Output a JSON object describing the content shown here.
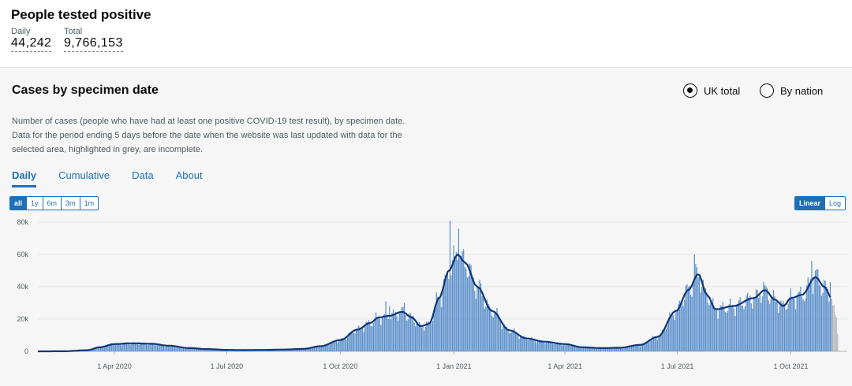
{
  "header": {
    "title": "People tested positive",
    "daily_label": "Daily",
    "daily_value": "44,242",
    "total_label": "Total",
    "total_value": "9,766,153"
  },
  "card": {
    "title": "Cases by specimen date",
    "radio_uk": "UK total",
    "radio_nation": "By nation",
    "radio_selected": "UK total",
    "description": "Number of cases (people who have had at least one positive COVID-19 test result), by specimen date. Data for the period ending 5 days before the date when the website was last updated with data for the selected area, highlighted in grey, are incomplete.",
    "tabs": [
      "Daily",
      "Cumulative",
      "Data",
      "About"
    ],
    "active_tab": "Daily",
    "range_buttons": [
      "all",
      "1y",
      "6m",
      "3m",
      "1m"
    ],
    "active_range": "all",
    "scale_buttons": [
      "Linear",
      "Log"
    ],
    "active_scale": "Linear"
  },
  "colors": {
    "bar": "#5a8fcb",
    "bar_incomplete": "#b1b4b6",
    "line": "#12367a",
    "accent": "#1d70b8"
  },
  "chart_data": {
    "type": "bar",
    "series_bar": "daily cases",
    "series_line": "7-day average",
    "x_range": [
      "2020-01-30",
      "2021-11-08"
    ],
    "x_ticks": [
      {
        "date": "2020-04-01",
        "label": "1 Apr 2020"
      },
      {
        "date": "2020-07-01",
        "label": "1 Jul 2020"
      },
      {
        "date": "2020-10-01",
        "label": "1 Oct 2020"
      },
      {
        "date": "2021-01-01",
        "label": "1 Jan 2021"
      },
      {
        "date": "2021-04-01",
        "label": "1 Apr 2021"
      },
      {
        "date": "2021-07-01",
        "label": "1 Jul 2021"
      },
      {
        "date": "2021-10-01",
        "label": "1 Oct 2021"
      }
    ],
    "ylim": [
      0,
      80000
    ],
    "y_ticks": [
      {
        "value": 0,
        "label": "0"
      },
      {
        "value": 20000,
        "label": "20k"
      },
      {
        "value": 40000,
        "label": "40k"
      },
      {
        "value": 60000,
        "label": "60k"
      },
      {
        "value": 80000,
        "label": "80k"
      }
    ],
    "incomplete_days": 5,
    "average": [
      [
        "2020-01-30",
        0
      ],
      [
        "2020-02-20",
        50
      ],
      [
        "2020-03-10",
        700
      ],
      [
        "2020-03-20",
        2500
      ],
      [
        "2020-04-01",
        4500
      ],
      [
        "2020-04-15",
        5000
      ],
      [
        "2020-05-01",
        4700
      ],
      [
        "2020-05-15",
        3500
      ],
      [
        "2020-06-01",
        2000
      ],
      [
        "2020-06-15",
        1400
      ],
      [
        "2020-07-01",
        900
      ],
      [
        "2020-07-15",
        800
      ],
      [
        "2020-08-01",
        900
      ],
      [
        "2020-08-15",
        1100
      ],
      [
        "2020-09-01",
        1500
      ],
      [
        "2020-09-15",
        3200
      ],
      [
        "2020-10-01",
        7000
      ],
      [
        "2020-10-15",
        13500
      ],
      [
        "2020-10-25",
        17500
      ],
      [
        "2020-11-01",
        21000
      ],
      [
        "2020-11-10",
        22000
      ],
      [
        "2020-11-20",
        24500
      ],
      [
        "2020-11-28",
        21000
      ],
      [
        "2020-12-05",
        15500
      ],
      [
        "2020-12-12",
        17000
      ],
      [
        "2020-12-20",
        33000
      ],
      [
        "2020-12-28",
        50000
      ],
      [
        "2021-01-04",
        60000
      ],
      [
        "2021-01-10",
        55000
      ],
      [
        "2021-01-20",
        40000
      ],
      [
        "2021-02-01",
        25000
      ],
      [
        "2021-02-15",
        13000
      ],
      [
        "2021-03-01",
        8000
      ],
      [
        "2021-03-15",
        6000
      ],
      [
        "2021-04-01",
        4500
      ],
      [
        "2021-04-15",
        2500
      ],
      [
        "2021-05-01",
        2000
      ],
      [
        "2021-05-15",
        2200
      ],
      [
        "2021-06-01",
        4000
      ],
      [
        "2021-06-15",
        9000
      ],
      [
        "2021-06-30",
        25000
      ],
      [
        "2021-07-10",
        38000
      ],
      [
        "2021-07-18",
        48000
      ],
      [
        "2021-07-25",
        35000
      ],
      [
        "2021-08-01",
        26000
      ],
      [
        "2021-08-15",
        28000
      ],
      [
        "2021-09-01",
        33000
      ],
      [
        "2021-09-10",
        38000
      ],
      [
        "2021-09-18",
        32000
      ],
      [
        "2021-09-25",
        28000
      ],
      [
        "2021-10-01",
        33000
      ],
      [
        "2021-10-10",
        35000
      ],
      [
        "2021-10-21",
        46000
      ],
      [
        "2021-10-28",
        40000
      ],
      [
        "2021-11-03",
        33000
      ],
      [
        "2021-11-08",
        37000
      ]
    ],
    "spikes": [
      [
        "2020-11-07",
        31000
      ],
      [
        "2020-11-10",
        28000
      ],
      [
        "2020-11-22",
        30000
      ],
      [
        "2020-12-26",
        47000
      ],
      [
        "2020-12-29",
        81000
      ],
      [
        "2021-01-05",
        76000
      ],
      [
        "2021-01-08",
        62000
      ],
      [
        "2021-07-15",
        60000
      ],
      [
        "2021-09-09",
        43000
      ],
      [
        "2021-10-18",
        56000
      ],
      [
        "2021-10-21",
        50000
      ],
      [
        "2021-11-02",
        43000
      ],
      [
        "2021-11-07",
        48000
      ]
    ]
  }
}
